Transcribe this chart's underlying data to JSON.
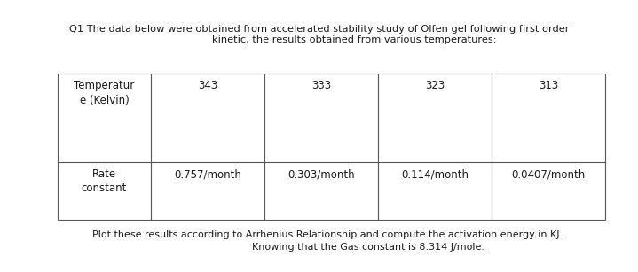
{
  "title_line1": "Q1 The data below were obtained from accelerated stability study of Olfen gel following first order",
  "title_line2": "kinetic, the results obtained from various temperatures:",
  "footer_line1": "Plot these results according to Arrhenius Relationship and compute the activation energy in KJ.",
  "footer_line2": "Knowing that the Gas constant is 8.314 J/mole.",
  "col0_row0": "Temperatur\ne (Kelvin)",
  "col0_row1": "Rate\nconstant",
  "temperatures": [
    "343",
    "333",
    "323",
    "313"
  ],
  "rates": [
    "0.757/month",
    "0.303/month",
    "0.114/month",
    "0.0407/month"
  ],
  "bg_color": "#ffffff",
  "text_color": "#1a1a1a",
  "table_line_color": "#555555",
  "title_fontsize": 8.2,
  "footer_fontsize": 8.0,
  "cell_fontsize": 8.5
}
